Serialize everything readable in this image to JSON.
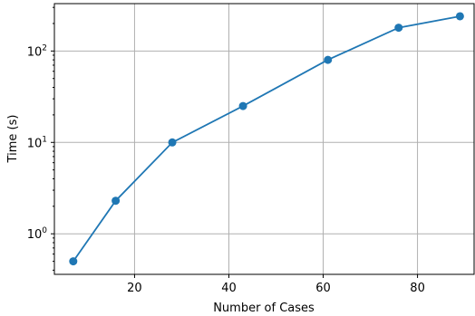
{
  "chart_data": {
    "type": "line",
    "xlabel": "Number of Cases",
    "ylabel": "Time (s)",
    "y_scale": "log",
    "grid": true,
    "xlim": [
      3,
      92
    ],
    "ylim": [
      0.36,
      330
    ],
    "x_ticks": [
      20,
      40,
      60,
      80
    ],
    "x_tick_labels": [
      "20",
      "40",
      "60",
      "80"
    ],
    "y_ticks": [
      1,
      10,
      100
    ],
    "y_tick_labels": [
      {
        "base": "10",
        "exp": "0"
      },
      {
        "base": "10",
        "exp": "1"
      },
      {
        "base": "10",
        "exp": "2"
      }
    ],
    "series": [
      {
        "color": "#1f77b4",
        "x": [
          7,
          16,
          28,
          43,
          61,
          76,
          89
        ],
        "y": [
          0.5,
          2.3,
          10,
          25,
          80,
          180,
          240
        ]
      }
    ]
  }
}
